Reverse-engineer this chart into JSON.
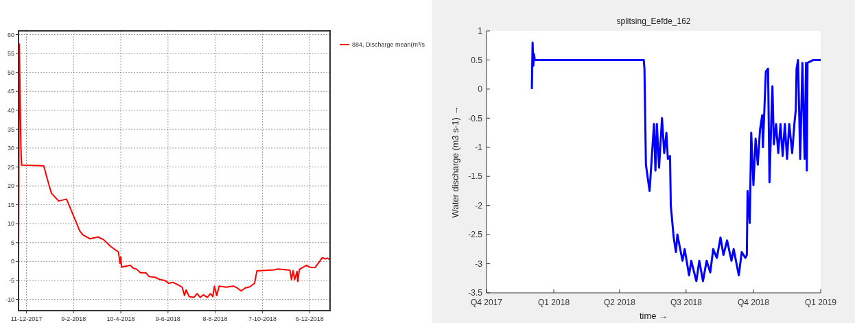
{
  "chart_data": [
    {
      "type": "line",
      "xlim": [
        "2017-12-01",
        "2019-01-01"
      ],
      "ylim": [
        -13,
        61
      ],
      "xticks": [
        {
          "value": "2017-12-11",
          "label": "11-12-2017"
        },
        {
          "value": "2018-02-09",
          "label": "9-2-2018"
        },
        {
          "value": "2018-04-10",
          "label": "10-4-2018"
        },
        {
          "value": "2018-06-09",
          "label": "9-6-2018"
        },
        {
          "value": "2018-08-08",
          "label": "8-8-2018"
        },
        {
          "value": "2018-10-07",
          "label": "7-10-2018"
        },
        {
          "value": "2018-12-06",
          "label": "6-12-2018"
        }
      ],
      "yticks": [
        -10,
        -5,
        0,
        5,
        10,
        15,
        20,
        25,
        30,
        35,
        40,
        45,
        50,
        55,
        60
      ],
      "grid": true,
      "legend": "top right",
      "line_style": "solid",
      "series": [
        {
          "name": "884, Discharge mean(m³/s",
          "color": "#ff0000",
          "x": [
            "2017-12-01",
            "2017-12-02",
            "2017-12-03",
            "2017-12-04",
            "2017-12-05",
            "2018-01-02",
            "2018-01-09",
            "2018-01-12",
            "2018-01-21",
            "2018-01-31",
            "2018-02-09",
            "2018-02-17",
            "2018-02-21",
            "2018-03-02",
            "2018-03-12",
            "2018-03-19",
            "2018-03-28",
            "2018-04-07",
            "2018-04-09",
            "2018-04-10",
            "2018-04-11",
            "2018-04-22",
            "2018-04-26",
            "2018-04-30",
            "2018-05-05",
            "2018-05-12",
            "2018-05-16",
            "2018-05-24",
            "2018-05-30",
            "2018-06-05",
            "2018-06-10",
            "2018-06-15",
            "2018-06-22",
            "2018-06-27",
            "2018-06-30",
            "2018-07-02",
            "2018-07-06",
            "2018-07-12",
            "2018-07-16",
            "2018-07-20",
            "2018-07-24",
            "2018-07-29",
            "2018-08-02",
            "2018-08-05",
            "2018-08-07",
            "2018-08-10",
            "2018-08-13",
            "2018-08-22",
            "2018-08-31",
            "2018-09-05",
            "2018-09-10",
            "2018-09-15",
            "2018-09-21",
            "2018-09-27",
            "2018-09-30",
            "2018-10-22",
            "2018-10-26",
            "2018-11-11",
            "2018-11-13",
            "2018-11-15",
            "2018-11-17",
            "2018-11-20",
            "2018-11-21",
            "2018-11-23",
            "2018-12-02",
            "2018-12-06",
            "2018-12-13",
            "2018-12-22",
            "2018-12-26",
            "2018-12-29",
            "2018-12-31"
          ],
          "values": [
            0,
            57.5,
            44,
            30,
            25.5,
            25.3,
            20,
            18,
            16,
            16.5,
            12,
            8,
            7,
            6,
            6.5,
            5.8,
            4,
            2.5,
            -0.5,
            1.2,
            -1.5,
            -1,
            -1.8,
            -2,
            -3,
            -3,
            -4,
            -4.2,
            -4.8,
            -5,
            -5.8,
            -5.5,
            -6.2,
            -6.8,
            -9,
            -7.5,
            -9.3,
            -9.5,
            -8.5,
            -9.5,
            -8.8,
            -9.5,
            -8.5,
            -9.3,
            -6.5,
            -9,
            -6.5,
            -6.8,
            -6.5,
            -7,
            -7.8,
            -7,
            -6.7,
            -5.8,
            -2.5,
            -2.2,
            -2,
            -2.3,
            -4.8,
            -2.4,
            -4.8,
            -2.6,
            -5.3,
            -2.1,
            -1,
            -1.5,
            -1.6,
            1,
            0.7,
            0.9,
            0.5
          ]
        }
      ]
    },
    {
      "type": "line",
      "title": "splitsing_Eefde_162",
      "xlabel": "time →",
      "ylabel": "Water discharge (m3 s-1) →",
      "xlim": [
        "2017-10-01",
        "2019-01-01"
      ],
      "ylim": [
        -3.5,
        1
      ],
      "xticks": [
        {
          "value": "2017-10-01",
          "label": "Q4 2017"
        },
        {
          "value": "2018-01-01",
          "label": "Q1 2018"
        },
        {
          "value": "2018-04-01",
          "label": "Q2 2018"
        },
        {
          "value": "2018-07-01",
          "label": "Q3 2018"
        },
        {
          "value": "2018-10-01",
          "label": "Q4 2018"
        },
        {
          "value": "2019-01-01",
          "label": "Q1 2019"
        }
      ],
      "yticks": [
        -3.5,
        -3,
        -2.5,
        -2,
        -1.5,
        -1,
        -0.5,
        0,
        0.5,
        1
      ],
      "line_style": "solid",
      "series": [
        {
          "color": "#0000ff",
          "x": [
            "2017-12-02",
            "2017-12-03",
            "2017-12-04",
            "2017-12-05",
            "2017-12-06",
            "2018-05-04",
            "2018-05-05",
            "2018-05-07",
            "2018-05-12",
            "2018-05-18",
            "2018-05-20",
            "2018-05-22",
            "2018-05-25",
            "2018-05-29",
            "2018-06-01",
            "2018-06-04",
            "2018-06-06",
            "2018-06-09",
            "2018-06-10",
            "2018-06-14",
            "2018-06-17",
            "2018-06-19",
            "2018-06-26",
            "2018-06-29",
            "2018-07-05",
            "2018-07-08",
            "2018-07-15",
            "2018-07-19",
            "2018-07-24",
            "2018-07-29",
            "2018-08-03",
            "2018-08-07",
            "2018-08-12",
            "2018-08-17",
            "2018-08-21",
            "2018-08-26",
            "2018-09-01",
            "2018-09-04",
            "2018-09-11",
            "2018-09-15",
            "2018-09-20",
            "2018-09-22",
            "2018-09-23",
            "2018-09-26",
            "2018-09-28",
            "2018-10-01",
            "2018-10-04",
            "2018-10-07",
            "2018-10-10",
            "2018-10-13",
            "2018-10-14",
            "2018-10-18",
            "2018-10-21",
            "2018-10-23",
            "2018-10-26",
            "2018-10-27",
            "2018-10-29",
            "2018-11-01",
            "2018-11-04",
            "2018-11-07",
            "2018-11-10",
            "2018-11-13",
            "2018-11-16",
            "2018-11-19",
            "2018-11-23",
            "2018-11-26",
            "2018-11-28",
            "2018-11-29",
            "2018-12-01",
            "2018-12-04",
            "2018-12-07",
            "2018-12-10",
            "2018-12-12",
            "2018-12-13",
            "2018-12-14",
            "2018-12-22",
            "2019-01-01"
          ],
          "values": [
            0,
            0.8,
            0.4,
            0.6,
            0.5,
            0.5,
            0.35,
            -1.3,
            -1.75,
            -0.6,
            -1.4,
            -0.6,
            -1.35,
            -0.5,
            -1.1,
            -0.75,
            -1.2,
            -1.15,
            -2,
            -2.55,
            -2.8,
            -2.5,
            -2.95,
            -2.75,
            -3.2,
            -2.95,
            -3.3,
            -2.95,
            -3.3,
            -2.95,
            -3.15,
            -2.75,
            -2.9,
            -2.55,
            -2.85,
            -2.6,
            -2.95,
            -2.75,
            -3.2,
            -2.8,
            -2.9,
            -2.85,
            -1.75,
            -2.3,
            -0.75,
            -1.65,
            -0.85,
            -1.3,
            -0.7,
            -0.45,
            -1,
            0.3,
            0.35,
            -1.6,
            -0.3,
            0.05,
            -0.95,
            -0.6,
            -1.1,
            -0.6,
            -1.15,
            -0.6,
            -1.2,
            -0.6,
            -1.1,
            -0.6,
            -0.35,
            0.35,
            0.5,
            -1.2,
            0.45,
            -1.2,
            0.45,
            -1.4,
            0.45,
            0.5,
            0.5
          ]
        }
      ]
    }
  ]
}
